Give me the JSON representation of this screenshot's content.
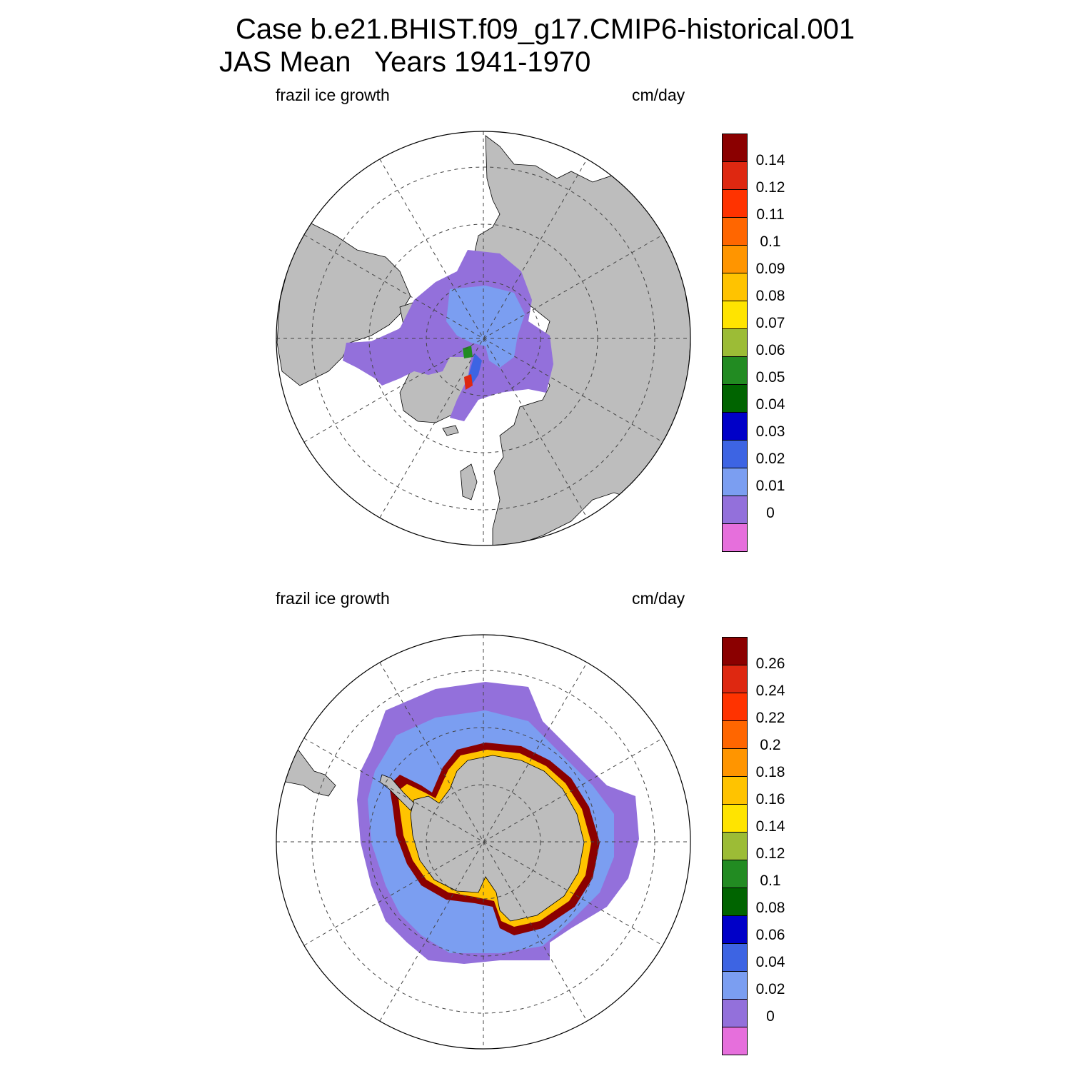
{
  "title_line1": "Case b.e21.BHIST.f09_g17.CMIP6-historical.001",
  "title_line2": "JAS Mean   Years 1941-1970",
  "colors": {
    "land": "#bdbdbd",
    "ice_free_ocean": "#ffffff",
    "palette": [
      "#e66fdc",
      "#9370db",
      "#7b9ef1",
      "#3d64e3",
      "#0000c8",
      "#006400",
      "#228b22",
      "#9cbc36",
      "#ffe400",
      "#ffc300",
      "#ff9500",
      "#ff6600",
      "#ff3300",
      "#de2811",
      "#8b0000"
    ]
  },
  "panels": [
    {
      "name": "Northern Hemisphere",
      "left_label": "frazil ice growth",
      "right_label": "cm/day",
      "colorbar_labels": [
        "0.14",
        "0.12",
        "0.11",
        "0.1",
        "0.09",
        "0.08",
        "0.07",
        "0.06",
        "0.05",
        "0.04",
        "0.03",
        "0.02",
        "0.01",
        "0"
      ]
    },
    {
      "name": "Southern Hemisphere",
      "left_label": "frazil ice growth",
      "right_label": "cm/day",
      "colorbar_labels": [
        "0.26",
        "0.24",
        "0.22",
        "0.2",
        "0.18",
        "0.16",
        "0.14",
        "0.12",
        "0.1",
        "0.08",
        "0.06",
        "0.04",
        "0.02",
        "0"
      ]
    }
  ]
}
